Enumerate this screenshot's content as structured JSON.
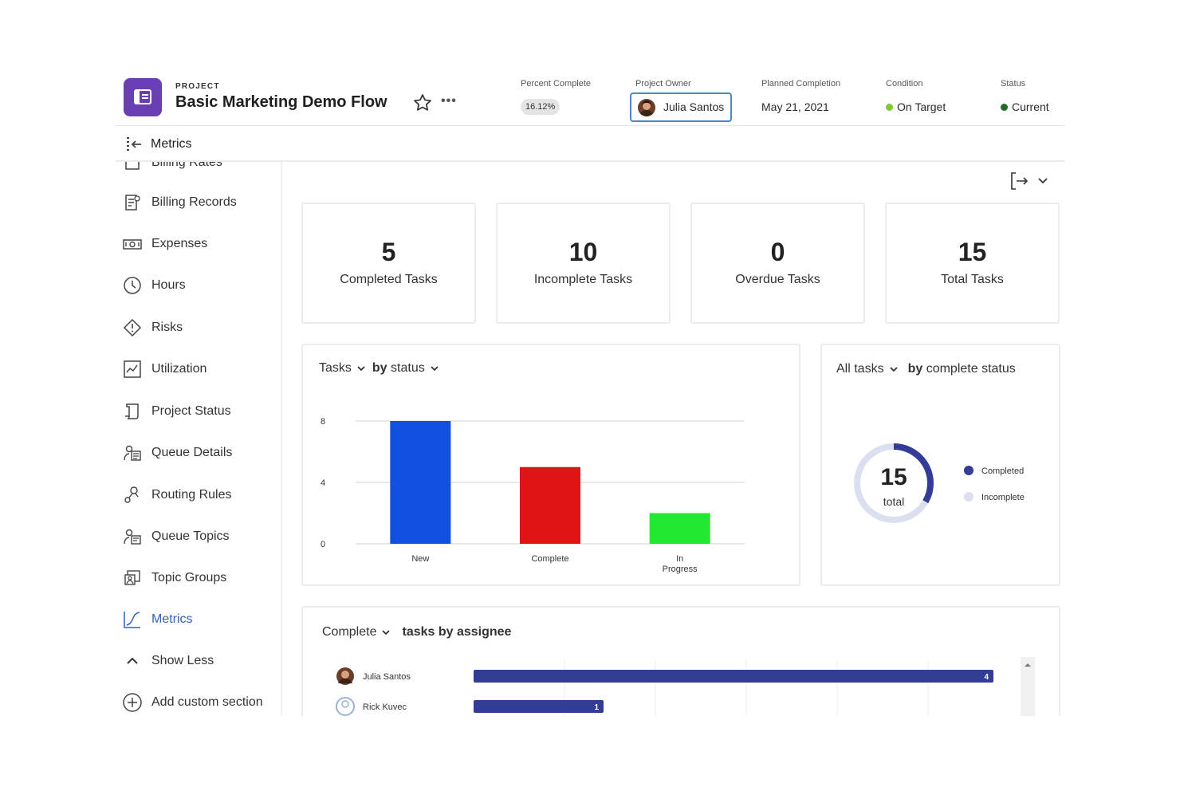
{
  "header": {
    "kicker": "PROJECT",
    "title": "Basic Marketing Demo Flow",
    "more": "•••",
    "percent_complete": {
      "label": "Percent Complete",
      "value": "16.12%"
    },
    "project_owner": {
      "label": "Project Owner",
      "value": "Julia Santos"
    },
    "planned_completion": {
      "label": "Planned Completion",
      "value": "May 21, 2021"
    },
    "condition": {
      "label": "Condition",
      "value": "On Target",
      "color": "#7ec832"
    },
    "status": {
      "label": "Status",
      "value": "Current",
      "color": "#1e6b2a"
    }
  },
  "crumb": {
    "label": "Metrics"
  },
  "sidebar": {
    "items": [
      {
        "label": "Billing Rates",
        "icon": "billing-rates-icon"
      },
      {
        "label": "Billing Records",
        "icon": "billing-records-icon"
      },
      {
        "label": "Expenses",
        "icon": "expenses-icon"
      },
      {
        "label": "Hours",
        "icon": "clock-icon"
      },
      {
        "label": "Risks",
        "icon": "risk-diamond-icon"
      },
      {
        "label": "Utilization",
        "icon": "utilization-chart-icon"
      },
      {
        "label": "Project Status",
        "icon": "project-status-icon"
      },
      {
        "label": "Queue Details",
        "icon": "queue-details-icon"
      },
      {
        "label": "Routing Rules",
        "icon": "routing-rules-icon"
      },
      {
        "label": "Queue Topics",
        "icon": "queue-topics-icon"
      },
      {
        "label": "Topic Groups",
        "icon": "topic-groups-icon"
      },
      {
        "label": "Metrics",
        "icon": "metrics-icon",
        "active": true
      },
      {
        "label": "Show Less",
        "icon": "chevron-up-icon"
      },
      {
        "label": "Add custom section",
        "icon": "add-circle-icon"
      }
    ]
  },
  "kpis": [
    {
      "value": "5",
      "label": "Completed Tasks"
    },
    {
      "value": "10",
      "label": "Incomplete Tasks"
    },
    {
      "value": "0",
      "label": "Overdue Tasks"
    },
    {
      "value": "15",
      "label": "Total Tasks"
    }
  ],
  "status_card": {
    "selector1": "Tasks",
    "by": "by",
    "selector2": "status"
  },
  "donut_card": {
    "selector1": "All tasks",
    "by": "by",
    "selector2": "complete status",
    "total_value": "15",
    "total_label": "total"
  },
  "assignee_card": {
    "selector1": "Complete",
    "title": "tasks by assignee"
  },
  "colors": {
    "accent": "#2f63b8",
    "navy": "#343d96",
    "lavender": "#dcdff0",
    "bar_new": "#1150e0",
    "bar_complete": "#e01414",
    "bar_progress": "#22e832"
  },
  "chart_data": [
    {
      "type": "bar",
      "categories": [
        "New",
        "Complete",
        "In Progress"
      ],
      "values": [
        8,
        5,
        2
      ],
      "ylim": [
        0,
        8
      ],
      "yticks": [
        "0",
        "4",
        "8"
      ],
      "colors": [
        "#1150e0",
        "#e01414",
        "#22e832"
      ],
      "grid": true
    },
    {
      "type": "pie",
      "categories": [
        "Completed",
        "Incomplete"
      ],
      "values": [
        5,
        10
      ],
      "colors": [
        "#343d96",
        "#dcdff0"
      ],
      "legend": "right"
    },
    {
      "type": "bar",
      "orientation": "horizontal",
      "categories": [
        "Julia Santos",
        "Rick Kuvec"
      ],
      "values": [
        4,
        1
      ],
      "xlim": [
        0,
        4
      ]
    }
  ]
}
